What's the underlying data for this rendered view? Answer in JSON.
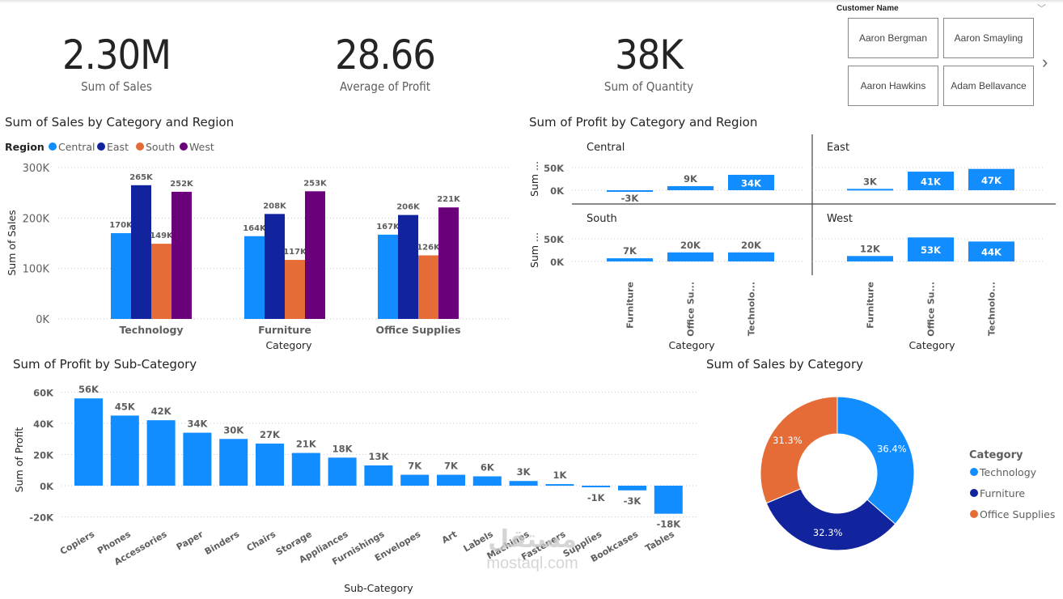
{
  "kpis": [
    {
      "value": "2.30M",
      "label": "Sum of Sales"
    },
    {
      "value": "28.66",
      "label": "Average of Profit"
    },
    {
      "value": "38K",
      "label": "Sum of Quantity"
    }
  ],
  "slicer": {
    "title": "Customer Name",
    "items": [
      "Aaron Bergman",
      "Aaron Smayling",
      "Aaron Hawkins",
      "Adam Bellavance"
    ],
    "chevron_icon": "chevron-down-icon",
    "next_icon": "chevron-right-icon",
    "chevron_glyph": "﹀",
    "next_glyph": "›"
  },
  "colors": {
    "Central": "#118DFF",
    "East": "#12239E",
    "South": "#E66C37",
    "West": "#6B007B",
    "primary": "#118DFF"
  },
  "watermark": {
    "arabic": "مستقل",
    "latin": "mostaql.com"
  },
  "chart_data": [
    {
      "id": "sales_by_category_region",
      "type": "bar",
      "title": "Sum of Sales by Category and Region",
      "legend_title": "Region",
      "legend_position": "top-left",
      "categories": [
        "Technology",
        "Furniture",
        "Office Supplies"
      ],
      "series": [
        {
          "name": "Central",
          "values": [
            170,
            164,
            167
          ],
          "labels": [
            "170K",
            "164K",
            "167K"
          ]
        },
        {
          "name": "East",
          "values": [
            265,
            208,
            206
          ],
          "labels": [
            "265K",
            "208K",
            "206K"
          ]
        },
        {
          "name": "South",
          "values": [
            149,
            117,
            126
          ],
          "labels": [
            "149K",
            "117K",
            "126K"
          ]
        },
        {
          "name": "West",
          "values": [
            252,
            253,
            221
          ],
          "labels": [
            "252K",
            "253K",
            "221K"
          ]
        }
      ],
      "unit": "K",
      "xlabel": "Category",
      "ylabel": "Sum of Sales",
      "ylim": [
        0,
        300
      ],
      "yticks": [
        0,
        100,
        200,
        300
      ],
      "yticklabels": [
        "0K",
        "100K",
        "200K",
        "300K"
      ],
      "grid": true
    },
    {
      "id": "profit_by_category_region",
      "type": "bar",
      "title": "Sum of Profit by Category and Region",
      "small_multiples": true,
      "categories": [
        "Furniture",
        "Office Supplies",
        "Technology"
      ],
      "category_ticklabels": [
        "Furniture",
        "Office Su...",
        "Technolo..."
      ],
      "panels": [
        {
          "name": "Central",
          "values": [
            -3,
            9,
            34
          ],
          "labels": [
            "-3K",
            "9K",
            "34K"
          ]
        },
        {
          "name": "East",
          "values": [
            3,
            41,
            47
          ],
          "labels": [
            "3K",
            "41K",
            "47K"
          ]
        },
        {
          "name": "South",
          "values": [
            7,
            20,
            20
          ],
          "labels": [
            "7K",
            "20K",
            "20K"
          ]
        },
        {
          "name": "West",
          "values": [
            12,
            53,
            44
          ],
          "labels": [
            "12K",
            "53K",
            "44K"
          ]
        }
      ],
      "xlabel": "Category",
      "ylabel": "Sum ...",
      "ylim": [
        0,
        50
      ],
      "yticklabels": [
        "0K",
        "50K"
      ],
      "grid": true
    },
    {
      "id": "profit_by_subcategory",
      "type": "bar",
      "title": "Sum of Profit by Sub-Category",
      "categories": [
        "Copiers",
        "Phones",
        "Accessories",
        "Paper",
        "Binders",
        "Chairs",
        "Storage",
        "Appliances",
        "Furnishings",
        "Envelopes",
        "Art",
        "Labels",
        "Machines",
        "Fasteners",
        "Supplies",
        "Bookcases",
        "Tables"
      ],
      "values": [
        56,
        45,
        42,
        34,
        30,
        27,
        21,
        18,
        13,
        7,
        7,
        6,
        3,
        1,
        -1,
        -3,
        -18
      ],
      "labels": [
        "56K",
        "45K",
        "42K",
        "34K",
        "30K",
        "27K",
        "21K",
        "18K",
        "13K",
        "7K",
        "7K",
        "6K",
        "3K",
        "1K",
        "-1K",
        "-3K",
        "-18K"
      ],
      "xlabel": "Sub-Category",
      "ylabel": "Sum of Profit",
      "ylim": [
        -20,
        60
      ],
      "yticks": [
        -20,
        0,
        20,
        40,
        60
      ],
      "yticklabels": [
        "-20K",
        "0K",
        "20K",
        "40K",
        "60K"
      ],
      "grid": true
    },
    {
      "id": "sales_by_category",
      "type": "pie",
      "donut": true,
      "title": "Sum of Sales by Category",
      "legend_title": "Category",
      "legend_position": "right",
      "slices": [
        {
          "name": "Technology",
          "value": 36.4,
          "label": "36.4%",
          "color": "#118DFF"
        },
        {
          "name": "Furniture",
          "value": 32.3,
          "label": "32.3%",
          "color": "#12239E"
        },
        {
          "name": "Office Supplies",
          "value": 31.3,
          "label": "31.3%",
          "color": "#E66C37"
        }
      ]
    }
  ]
}
